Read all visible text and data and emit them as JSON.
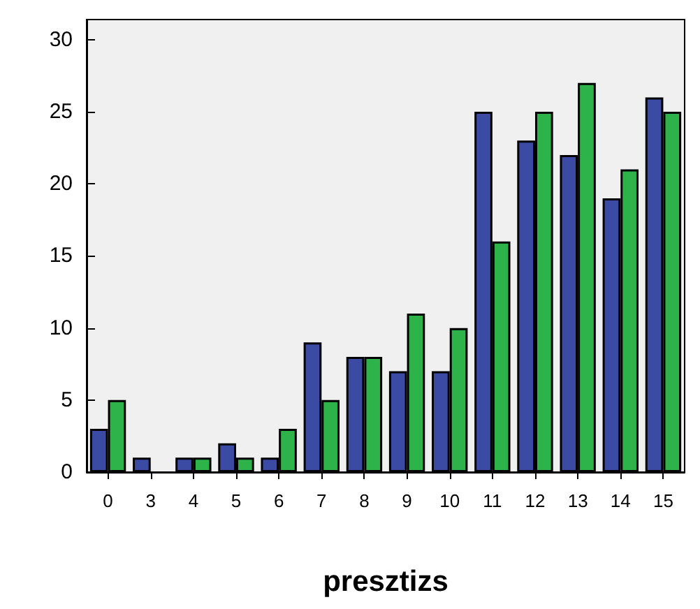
{
  "chart_data": {
    "type": "bar",
    "xlabel": "presztizs",
    "categories": [
      "0",
      "3",
      "4",
      "5",
      "6",
      "7",
      "8",
      "9",
      "10",
      "11",
      "12",
      "13",
      "14",
      "15"
    ],
    "series": [
      {
        "color": "#3b4ba3",
        "values": [
          3,
          1,
          1,
          2,
          1,
          9,
          8,
          7,
          7,
          25,
          23,
          22,
          19,
          26
        ]
      },
      {
        "color": "#2db34a",
        "values": [
          5,
          null,
          1,
          1,
          3,
          5,
          8,
          11,
          10,
          16,
          25,
          27,
          21,
          25
        ]
      }
    ],
    "ylim": [
      0,
      31.4
    ],
    "yticks": [
      0,
      5,
      10,
      15,
      20,
      25,
      30
    ],
    "grid": false
  }
}
